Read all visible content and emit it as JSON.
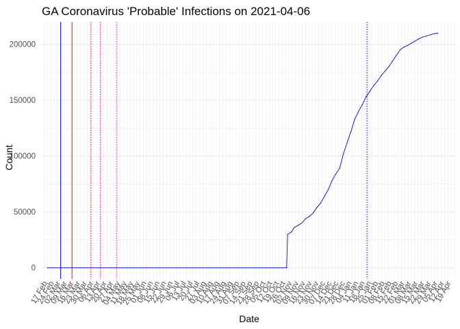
{
  "chart_data": {
    "type": "line",
    "title": "GA Coronavirus 'Probable' Infections on 2021-04-06",
    "xlabel": "Date",
    "ylabel": "Count",
    "xlim": [
      "2020-02-11",
      "2021-04-24"
    ],
    "ylim": [
      -10000,
      220000
    ],
    "yticks": [
      0,
      50000,
      100000,
      150000,
      200000
    ],
    "ytick_labels": [
      "0",
      "50000",
      "100000",
      "150000",
      "200000"
    ],
    "xticks": [
      "2020-02-17",
      "2020-02-24",
      "2020-03-02",
      "2020-03-09",
      "2020-03-16",
      "2020-03-23",
      "2020-03-30",
      "2020-04-06",
      "2020-04-13",
      "2020-04-20",
      "2020-04-27",
      "2020-05-04",
      "2020-05-11",
      "2020-05-18",
      "2020-05-25",
      "2020-06-01",
      "2020-06-08",
      "2020-06-15",
      "2020-06-22",
      "2020-06-29",
      "2020-07-06",
      "2020-07-13",
      "2020-07-20",
      "2020-07-27",
      "2020-08-03",
      "2020-08-10",
      "2020-08-17",
      "2020-08-24",
      "2020-08-31",
      "2020-09-07",
      "2020-09-14",
      "2020-09-21",
      "2020-09-28",
      "2020-10-05",
      "2020-10-12",
      "2020-10-19",
      "2020-10-26",
      "2020-11-02",
      "2020-11-09",
      "2020-11-16",
      "2020-11-23",
      "2020-11-30",
      "2020-12-07",
      "2020-12-14",
      "2020-12-21",
      "2020-12-28",
      "2021-01-04",
      "2021-01-11",
      "2021-01-18",
      "2021-01-25",
      "2021-02-01",
      "2021-02-08",
      "2021-02-15",
      "2021-02-22",
      "2021-03-01",
      "2021-03-08",
      "2021-03-15",
      "2021-03-22",
      "2021-03-29",
      "2021-04-05",
      "2021-04-12",
      "2021-04-19"
    ],
    "xtick_labels": [
      "17 Feb",
      "24 Feb",
      "02 Mar",
      "09 Mar",
      "16 Mar",
      "23 Mar",
      "30 Mar",
      "06 Apr",
      "13 Apr",
      "20 Apr",
      "27 Apr",
      "04 May",
      "11 May",
      "18 May",
      "25 May",
      "01 Jun",
      "08 Jun",
      "15 Jun",
      "22 Jun",
      "29 Jun",
      "06 Jul",
      "13 Jul",
      "20 Jul",
      "27 Jul",
      "03 Aug",
      "10 Aug",
      "17 Aug",
      "24 Aug",
      "31 Aug",
      "07 Sep",
      "14 Sep",
      "21 Sep",
      "28 Sep",
      "05 Oct",
      "12 Oct",
      "19 Oct",
      "26 Oct",
      "02 Nov",
      "09 Nov",
      "16 Nov",
      "23 Nov",
      "30 Nov",
      "07 Dec",
      "14 Dec",
      "21 Dec",
      "28 Dec",
      "04 Jan",
      "11 Jan",
      "18 Jan",
      "25 Jan",
      "01 Feb",
      "08 Feb",
      "15 Feb",
      "22 Feb",
      "01 Mar",
      "08 Mar",
      "15 Mar",
      "22 Mar",
      "29 Mar",
      "05 Apr",
      "12 Apr",
      "19 Apr"
    ],
    "grid": true,
    "series": [
      {
        "color": "#0000ff",
        "x": [
          "2020-02-17",
          "2020-10-27",
          "2020-10-28",
          "2020-11-01",
          "2020-11-04",
          "2020-11-08",
          "2020-11-12",
          "2020-11-16",
          "2020-11-20",
          "2020-11-24",
          "2020-11-28",
          "2020-12-02",
          "2020-12-06",
          "2020-12-10",
          "2020-12-14",
          "2020-12-18",
          "2020-12-22",
          "2020-12-26",
          "2020-12-30",
          "2021-01-03",
          "2021-01-07",
          "2021-01-11",
          "2021-01-15",
          "2021-01-19",
          "2021-01-23",
          "2021-01-27",
          "2021-01-31",
          "2021-02-04",
          "2021-02-08",
          "2021-02-12",
          "2021-02-16",
          "2021-02-20",
          "2021-02-24",
          "2021-02-28",
          "2021-03-04",
          "2021-03-08",
          "2021-03-12",
          "2021-03-16",
          "2021-03-20",
          "2021-03-24",
          "2021-03-28",
          "2021-04-01",
          "2021-04-05"
        ],
        "y": [
          0,
          0,
          30000,
          32000,
          36000,
          38000,
          40000,
          44000,
          46000,
          49000,
          54000,
          58000,
          64000,
          70000,
          78000,
          84000,
          89000,
          102000,
          112000,
          122000,
          133000,
          140000,
          146000,
          153000,
          158000,
          163000,
          167000,
          172000,
          176000,
          180000,
          185000,
          190000,
          195000,
          197500,
          199000,
          201000,
          203000,
          205000,
          206500,
          207500,
          208500,
          209500,
          210000
        ]
      }
    ],
    "vlines": [
      {
        "x": "2020-03-02",
        "color": "#0000ff",
        "style": "solid"
      },
      {
        "x": "2020-03-14",
        "color": "#ff0000",
        "style": "solid"
      },
      {
        "x": "2020-04-03",
        "color": "#ff0000",
        "style": "dotted"
      },
      {
        "x": "2020-04-13",
        "color": "#ff00ff",
        "style": "dotted"
      },
      {
        "x": "2020-04-30",
        "color": "#ff00ff",
        "style": "dotted"
      },
      {
        "x": "2021-01-20",
        "color": "#0000ff",
        "style": "dotted"
      }
    ]
  }
}
